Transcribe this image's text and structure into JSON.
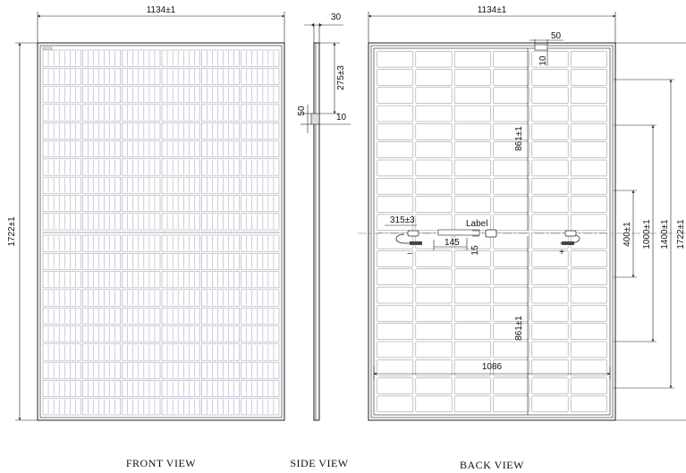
{
  "front_view": {
    "width_label": "1134±1",
    "height_label": "1722±1",
    "caption": "FRONT VIEW",
    "cells": {
      "columns": 6,
      "rows_per_half": 10,
      "busbar_strips_per_cell": 6
    }
  },
  "side_view": {
    "thickness_label": "30",
    "offset_label": "275±3",
    "box_height_label": "50",
    "box_depth_label": "10",
    "caption": "SIDE VIEW"
  },
  "back_view": {
    "width_label": "1134±1",
    "bracket_width_label": "50",
    "bracket_height_label": "10",
    "upper_section_label": "861±1",
    "lower_section_label": "861±1",
    "cable_length_label": "315±3",
    "label_text": "Label",
    "box_offset_label": "145",
    "box_height_label": "15",
    "negative_sign": "−",
    "positive_sign": "+",
    "inner_width_label": "1086",
    "mount_400_label": "400±1",
    "mount_1000_label": "1000±1",
    "mount_1400_label": "1400±1",
    "height_label": "1722±1",
    "caption": "BACK VIEW",
    "grid": {
      "columns": 6,
      "rows": 20
    }
  },
  "colors": {
    "line": "#222222",
    "cell_outline": "#7a7a9a",
    "center_line": "#d05050",
    "background": "#ffffff"
  }
}
